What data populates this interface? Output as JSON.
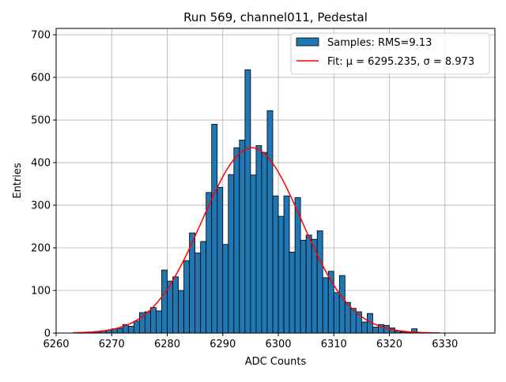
{
  "chart_data": {
    "type": "bar",
    "title": "Run 569, channel011, Pedestal",
    "xlabel": "ADC Counts",
    "ylabel": "Entries",
    "xlim": [
      6260,
      6339
    ],
    "ylim": [
      0,
      715
    ],
    "xticks": [
      6260,
      6270,
      6280,
      6290,
      6300,
      6310,
      6320,
      6330
    ],
    "yticks": [
      0,
      100,
      200,
      300,
      400,
      500,
      600,
      700
    ],
    "grid": true,
    "legend_position": "top-right",
    "histogram": {
      "name": "Samples: RMS=9.13",
      "color": "#1f77b4",
      "bin_width": 1,
      "bin_starts": [
        6266,
        6267,
        6268,
        6269,
        6270,
        6271,
        6272,
        6273,
        6274,
        6275,
        6276,
        6277,
        6278,
        6279,
        6280,
        6281,
        6282,
        6283,
        6284,
        6285,
        6286,
        6287,
        6288,
        6289,
        6290,
        6291,
        6292,
        6293,
        6294,
        6295,
        6296,
        6297,
        6298,
        6299,
        6300,
        6301,
        6302,
        6303,
        6304,
        6305,
        6306,
        6307,
        6308,
        6309,
        6310,
        6311,
        6312,
        6313,
        6314,
        6315,
        6316,
        6317,
        6318,
        6319,
        6320,
        6321,
        6322,
        6323,
        6324
      ],
      "counts": [
        2,
        4,
        5,
        7,
        10,
        11,
        20,
        16,
        28,
        48,
        50,
        60,
        52,
        148,
        122,
        132,
        100,
        170,
        235,
        188,
        215,
        330,
        490,
        342,
        208,
        372,
        435,
        453,
        618,
        371,
        440,
        424,
        522,
        322,
        274,
        322,
        190,
        318,
        218,
        230,
        220,
        240,
        130,
        145,
        95,
        135,
        72,
        58,
        50,
        26,
        46,
        14,
        20,
        18,
        12,
        5,
        3,
        2,
        10
      ]
    },
    "fit": {
      "name": "Fit: μ = 6295.235, σ = 8.973",
      "color": "#ff0000",
      "mu": 6295.235,
      "sigma": 8.973,
      "amplitude": 435,
      "x_range": [
        6263,
        6329
      ]
    }
  }
}
